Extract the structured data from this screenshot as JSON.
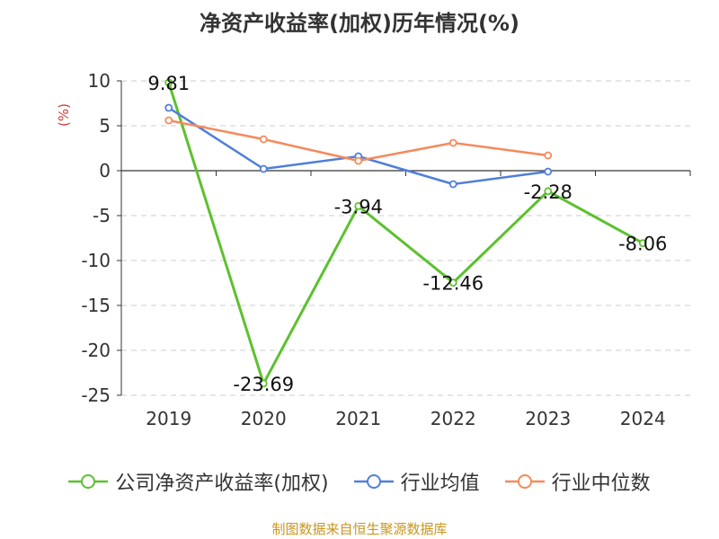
{
  "chart_data": {
    "type": "line",
    "title": "净资产收益率(加权)历年情况(%)",
    "ylabel": "(%)",
    "categories": [
      "2019",
      "2020",
      "2021",
      "2022",
      "2023",
      "2024"
    ],
    "yticks": [
      10,
      5,
      0,
      -5,
      -10,
      -15,
      -20,
      -25
    ],
    "ylim": [
      -25,
      10
    ],
    "grid": true,
    "legend_position": "bottom",
    "series": [
      {
        "name": "公司净资产收益率(加权)",
        "color": "#5cc12e",
        "values": [
          9.81,
          -23.69,
          -3.94,
          -12.46,
          -2.28,
          -8.06
        ],
        "labels": [
          "9.81",
          "-23.69",
          "-3.94",
          "-12.46",
          "-2.28",
          "-8.06"
        ]
      },
      {
        "name": "行业均值",
        "color": "#4f7fd9",
        "values": [
          7.0,
          0.2,
          1.6,
          -1.5,
          -0.1,
          null
        ]
      },
      {
        "name": "行业中位数",
        "color": "#f58a5c",
        "values": [
          5.6,
          3.5,
          1.1,
          3.1,
          1.7,
          null
        ]
      }
    ]
  },
  "source": "制图数据来自恒生聚源数据库"
}
